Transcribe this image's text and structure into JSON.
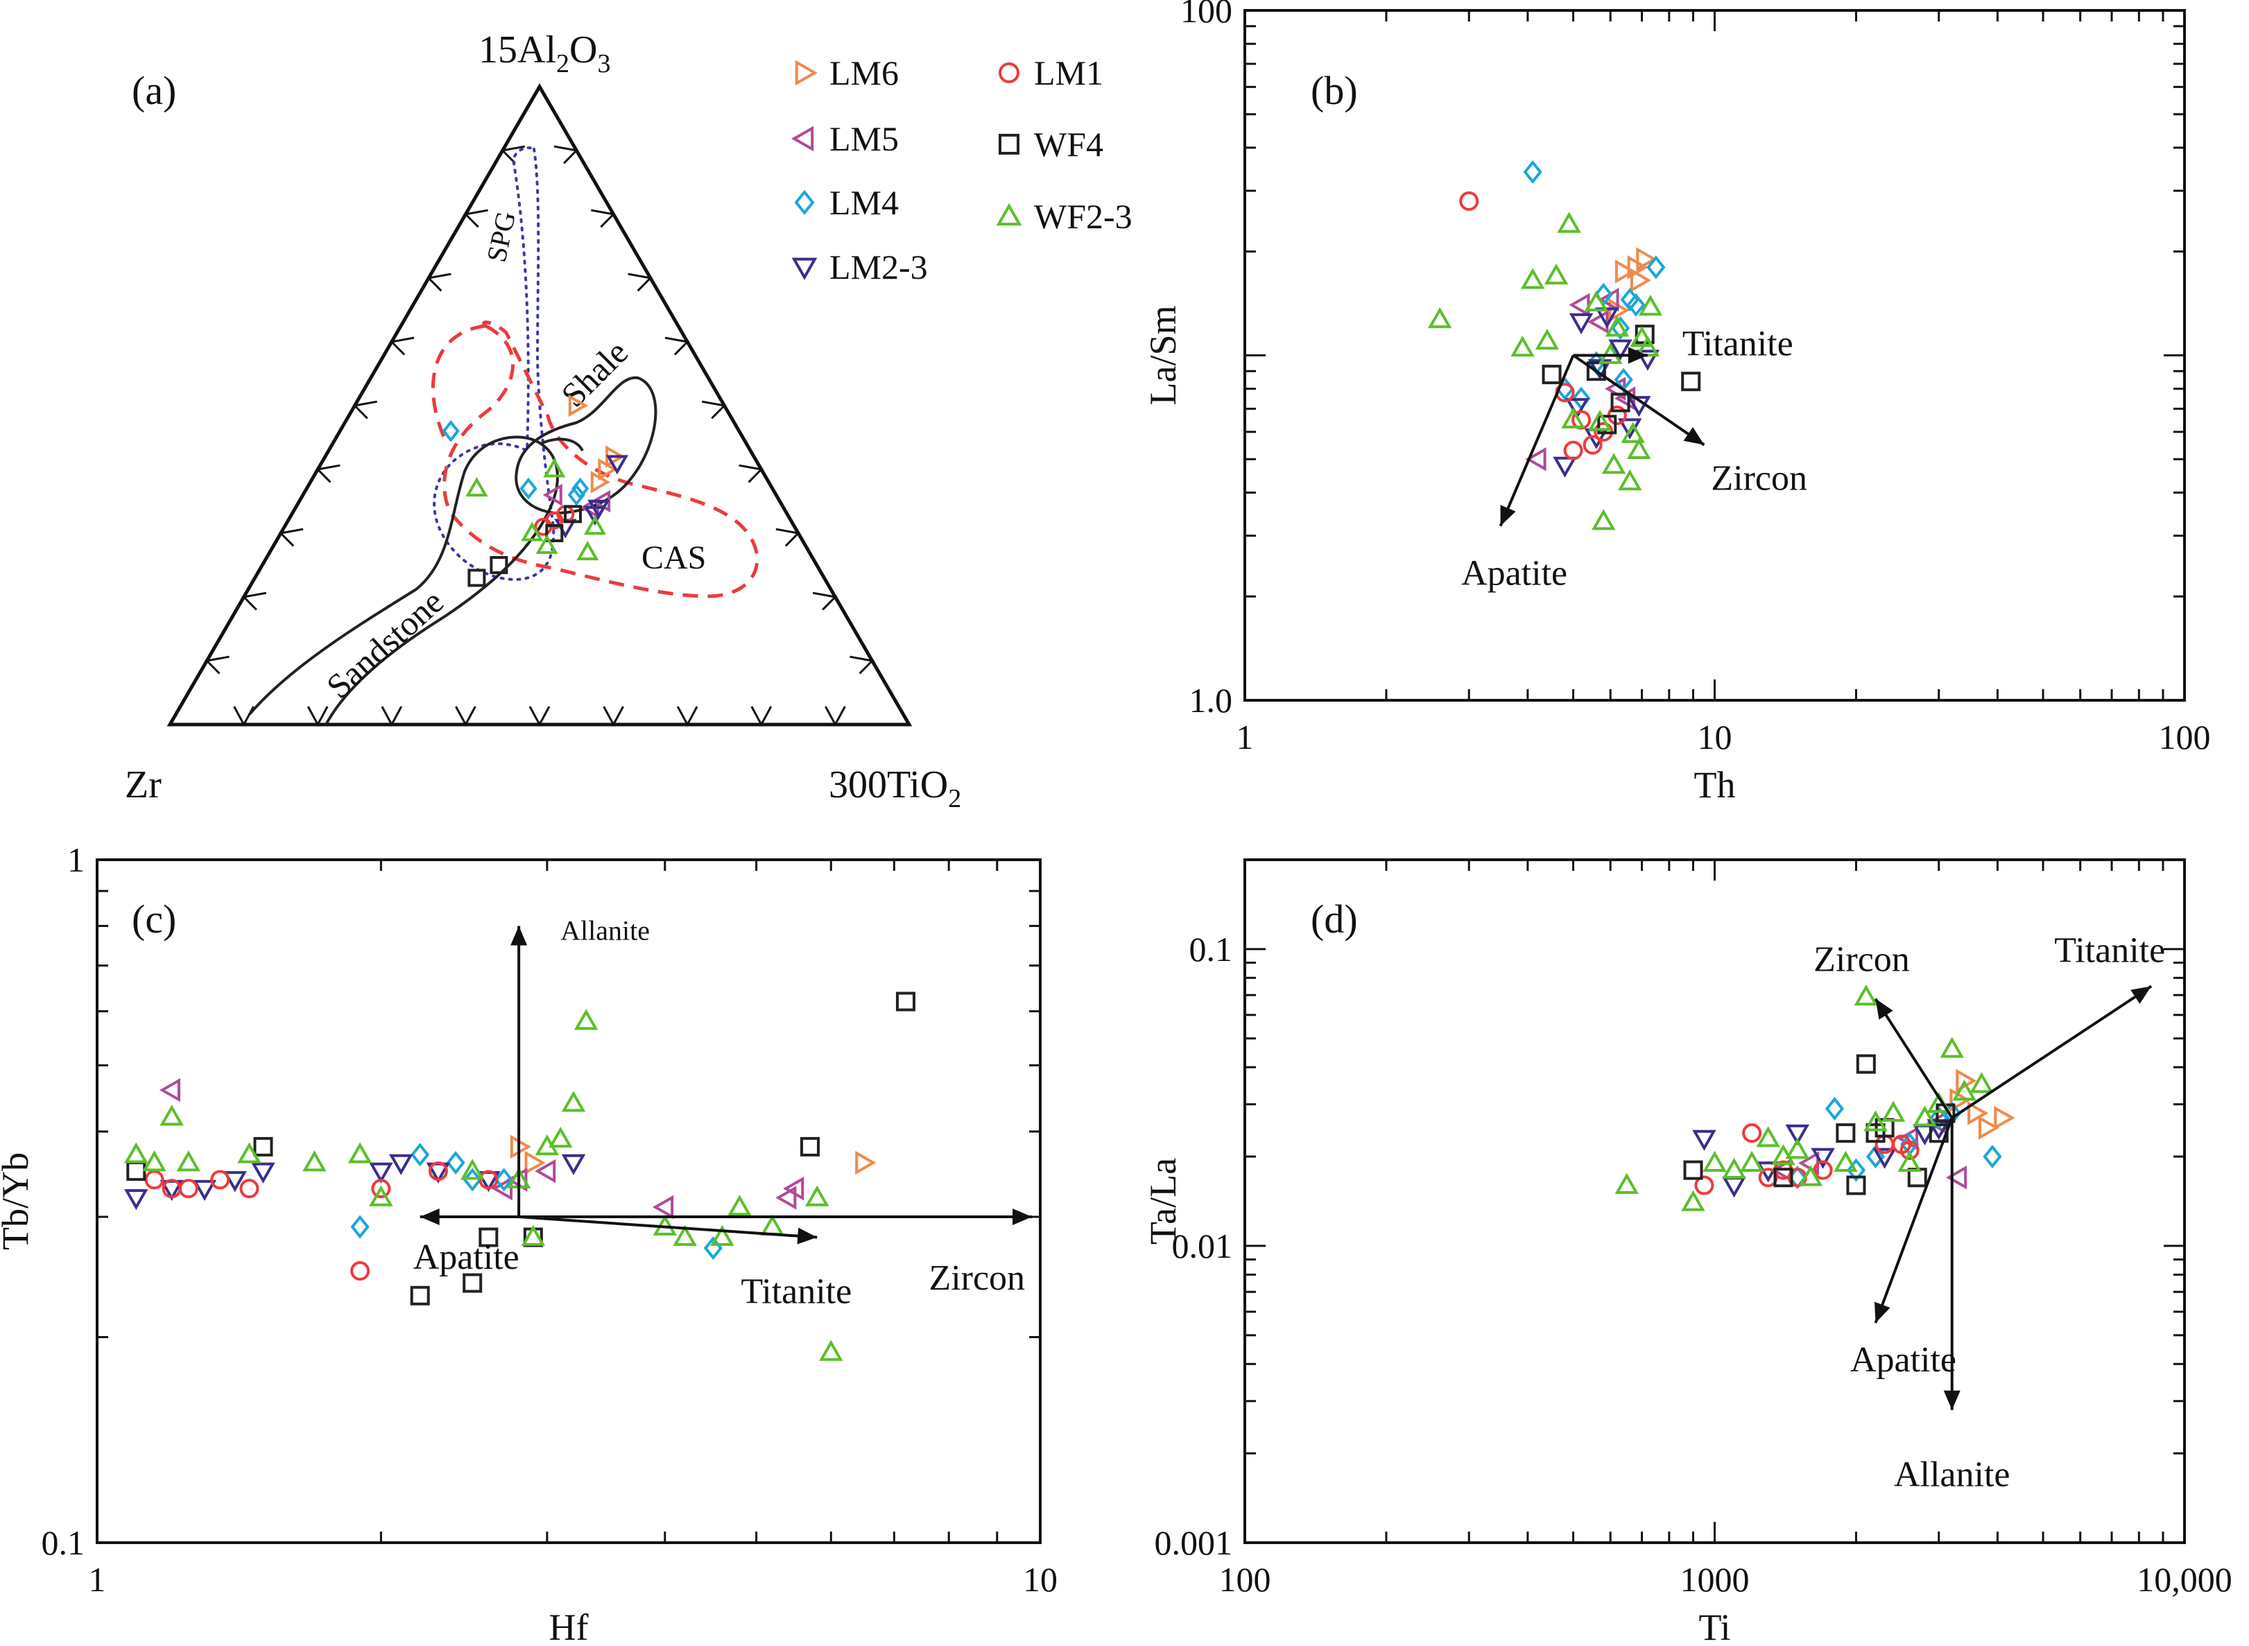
{
  "legend": [
    {
      "name": "LM6",
      "marker": "tri-right",
      "color": "#f08a4b"
    },
    {
      "name": "LM5",
      "marker": "tri-left",
      "color": "#b04a9a"
    },
    {
      "name": "LM4",
      "marker": "diamond",
      "color": "#1aa7d8"
    },
    {
      "name": "LM2-3",
      "marker": "tri-down",
      "color": "#3a2e8c"
    },
    {
      "name": "LM1",
      "marker": "circle",
      "color": "#ee3a3a"
    },
    {
      "name": "WF4",
      "marker": "square",
      "color": "#222222"
    },
    {
      "name": "WF2-3",
      "marker": "tri-up",
      "color": "#5bbf2a"
    }
  ],
  "chart_data": [
    {
      "panel": "(a)",
      "type": "ternary",
      "apex_labels": {
        "top": "15Al2O3",
        "left": "Zr",
        "right": "300TiO2"
      },
      "field_labels": [
        "SPG",
        "Shale",
        "CAS",
        "Sandstone"
      ],
      "note": "Composition points plotted as fractions (Al, Zr, Ti) summing to 1",
      "points": {
        "LM6": [
          [
            0.5,
            0.2,
            0.3
          ],
          [
            0.4,
            0.21,
            0.39
          ],
          [
            0.42,
            0.19,
            0.39
          ],
          [
            0.38,
            0.23,
            0.39
          ]
        ],
        "LM5": [
          [
            0.36,
            0.3,
            0.34
          ],
          [
            0.34,
            0.26,
            0.4
          ],
          [
            0.35,
            0.24,
            0.41
          ]
        ],
        "LM4": [
          [
            0.46,
            0.39,
            0.15
          ],
          [
            0.37,
            0.33,
            0.3
          ],
          [
            0.36,
            0.27,
            0.37
          ],
          [
            0.37,
            0.26,
            0.37
          ]
        ],
        "LM2-3": [
          [
            0.31,
            0.31,
            0.38
          ],
          [
            0.33,
            0.26,
            0.41
          ],
          [
            0.34,
            0.25,
            0.41
          ],
          [
            0.41,
            0.19,
            0.4
          ]
        ],
        "LM1": [
          [
            0.31,
            0.34,
            0.35
          ],
          [
            0.32,
            0.32,
            0.36
          ],
          [
            0.33,
            0.3,
            0.37
          ]
        ],
        "WF4": [
          [
            0.23,
            0.47,
            0.3
          ],
          [
            0.25,
            0.43,
            0.32
          ],
          [
            0.3,
            0.33,
            0.37
          ],
          [
            0.33,
            0.29,
            0.38
          ]
        ],
        "WF2-3": [
          [
            0.37,
            0.4,
            0.23
          ],
          [
            0.3,
            0.36,
            0.34
          ],
          [
            0.28,
            0.35,
            0.37
          ],
          [
            0.4,
            0.28,
            0.32
          ],
          [
            0.27,
            0.3,
            0.43
          ],
          [
            0.31,
            0.27,
            0.42
          ]
        ]
      }
    },
    {
      "panel": "(b)",
      "type": "scatter",
      "xscale": "log",
      "yscale": "log",
      "xlabel": "Th",
      "ylabel": "La/Sm",
      "xlim": [
        1,
        100
      ],
      "ylim": [
        1.0,
        100
      ],
      "xticks": [
        "1",
        "10",
        "100"
      ],
      "yticks": [
        "1.0",
        "100"
      ],
      "vectors": [
        {
          "label": "Titanite",
          "from": [
            5,
            10
          ],
          "to": [
            7.2,
            10
          ]
        },
        {
          "label": "Zircon",
          "from": [
            5,
            10
          ],
          "to": [
            9.5,
            5.5
          ]
        },
        {
          "label": "Apatite",
          "from": [
            5,
            10
          ],
          "to": [
            3.5,
            3.2
          ]
        }
      ],
      "series": {
        "LM6": [
          [
            6.8,
            18
          ],
          [
            7.1,
            19
          ],
          [
            6.4,
            17.5
          ],
          [
            6.9,
            16.5
          ],
          [
            6.2,
            13.5
          ]
        ],
        "LM5": [
          [
            6.0,
            14.5
          ],
          [
            5.7,
            12.5
          ],
          [
            6.2,
            8.0
          ],
          [
            4.2,
            5.0
          ],
          [
            5.2,
            14.0
          ],
          [
            6.5,
            7.5
          ]
        ],
        "LM4": [
          [
            4.1,
            34
          ],
          [
            7.5,
            18
          ],
          [
            5.8,
            15
          ],
          [
            6.6,
            14.5
          ],
          [
            5.6,
            9.5
          ],
          [
            6.4,
            8.5
          ],
          [
            4.8,
            8.0
          ],
          [
            5.2,
            7.5
          ],
          [
            6.8,
            14.0
          ],
          [
            6.3,
            12.0
          ]
        ],
        "LM2-3": [
          [
            5.2,
            12.5
          ],
          [
            5.9,
            13.0
          ],
          [
            6.3,
            10.5
          ],
          [
            5.7,
            9.2
          ],
          [
            6.9,
            7.2
          ],
          [
            5.1,
            7.1
          ],
          [
            6.6,
            6.2
          ],
          [
            5.6,
            5.8
          ],
          [
            4.8,
            4.8
          ],
          [
            7.2,
            9.8
          ]
        ],
        "LM1": [
          [
            3.0,
            28
          ],
          [
            5.2,
            6.5
          ],
          [
            5.8,
            6.0
          ],
          [
            5.0,
            5.3
          ],
          [
            4.8,
            7.8
          ],
          [
            6.2,
            6.7
          ],
          [
            5.5,
            5.5
          ]
        ],
        "WF4": [
          [
            4.5,
            8.8
          ],
          [
            5.9,
            6.3
          ],
          [
            6.3,
            7.3
          ],
          [
            5.6,
            9.0
          ],
          [
            7.1,
            11.5
          ],
          [
            8.9,
            8.4
          ]
        ],
        "WF2-3": [
          [
            2.6,
            12.7
          ],
          [
            3.9,
            10.5
          ],
          [
            4.4,
            11.0
          ],
          [
            4.1,
            16.5
          ],
          [
            4.6,
            17.0
          ],
          [
            4.9,
            24
          ],
          [
            5.6,
            14.2
          ],
          [
            6.0,
            10.0
          ],
          [
            5.7,
            6.4
          ],
          [
            6.7,
            5.9
          ],
          [
            7.3,
            13.8
          ],
          [
            7.0,
            11.2
          ],
          [
            6.1,
            4.8
          ],
          [
            6.6,
            4.3
          ],
          [
            5.8,
            3.3
          ],
          [
            5.0,
            6.5
          ],
          [
            6.9,
            5.3
          ],
          [
            6.2,
            12.0
          ],
          [
            7.2,
            10.5
          ]
        ]
      }
    },
    {
      "panel": "(c)",
      "type": "scatter",
      "xscale": "log",
      "yscale": "log",
      "xlabel": "Hf",
      "ylabel": "Tb/Yb",
      "xlim": [
        1,
        10
      ],
      "ylim": [
        0.1,
        1
      ],
      "xticks": [
        "1",
        "10"
      ],
      "yticks": [
        "0.1",
        "1"
      ],
      "vectors": [
        {
          "label": "Allanite",
          "from": [
            2.8,
            0.3
          ],
          "to": [
            2.8,
            0.8
          ]
        },
        {
          "label": "Apatite",
          "from": [
            2.8,
            0.3
          ],
          "to": [
            2.2,
            0.3
          ]
        },
        {
          "label": "Titanite",
          "from": [
            2.8,
            0.3
          ],
          "to": [
            5.8,
            0.28
          ]
        },
        {
          "label": "Zircon",
          "from": [
            2.8,
            0.3
          ],
          "to": [
            9.8,
            0.3
          ]
        }
      ],
      "series": {
        "LM6": [
          [
            2.9,
            0.36
          ],
          [
            6.5,
            0.36
          ],
          [
            2.8,
            0.38
          ]
        ],
        "LM5": [
          [
            1.2,
            0.46
          ],
          [
            2.8,
            0.34
          ],
          [
            3.0,
            0.35
          ],
          [
            4.0,
            0.31
          ],
          [
            5.4,
            0.32
          ],
          [
            5.5,
            0.33
          ],
          [
            2.7,
            0.33
          ]
        ],
        "LM4": [
          [
            1.9,
            0.29
          ],
          [
            2.2,
            0.37
          ],
          [
            2.4,
            0.36
          ],
          [
            2.5,
            0.34
          ],
          [
            4.5,
            0.27
          ],
          [
            2.7,
            0.34
          ]
        ],
        "LM2-3": [
          [
            1.1,
            0.32
          ],
          [
            1.2,
            0.33
          ],
          [
            1.3,
            0.33
          ],
          [
            1.4,
            0.34
          ],
          [
            1.5,
            0.35
          ],
          [
            2.0,
            0.35
          ],
          [
            2.1,
            0.36
          ],
          [
            2.3,
            0.35
          ],
          [
            2.6,
            0.34
          ],
          [
            3.2,
            0.36
          ]
        ],
        "LM1": [
          [
            1.15,
            0.34
          ],
          [
            1.2,
            0.33
          ],
          [
            1.25,
            0.33
          ],
          [
            1.35,
            0.34
          ],
          [
            1.45,
            0.33
          ],
          [
            2.0,
            0.33
          ],
          [
            2.3,
            0.35
          ],
          [
            2.6,
            0.34
          ],
          [
            1.9,
            0.25
          ]
        ],
        "WF4": [
          [
            1.1,
            0.35
          ],
          [
            1.5,
            0.38
          ],
          [
            2.6,
            0.28
          ],
          [
            2.9,
            0.28
          ],
          [
            2.5,
            0.24
          ],
          [
            2.2,
            0.23
          ],
          [
            5.7,
            0.38
          ],
          [
            7.2,
            0.62
          ]
        ],
        "WF2-3": [
          [
            1.1,
            0.37
          ],
          [
            1.15,
            0.36
          ],
          [
            1.25,
            0.36
          ],
          [
            1.45,
            0.37
          ],
          [
            1.7,
            0.36
          ],
          [
            1.9,
            0.37
          ],
          [
            2.0,
            0.32
          ],
          [
            2.5,
            0.35
          ],
          [
            2.8,
            0.34
          ],
          [
            3.0,
            0.38
          ],
          [
            3.1,
            0.39
          ],
          [
            3.2,
            0.44
          ],
          [
            3.3,
            0.58
          ],
          [
            4.0,
            0.29
          ],
          [
            4.2,
            0.28
          ],
          [
            4.6,
            0.28
          ],
          [
            4.8,
            0.31
          ],
          [
            5.2,
            0.29
          ],
          [
            5.8,
            0.32
          ],
          [
            6.0,
            0.19
          ],
          [
            2.9,
            0.28
          ],
          [
            1.2,
            0.42
          ]
        ]
      }
    },
    {
      "panel": "(d)",
      "type": "scatter",
      "xscale": "log",
      "yscale": "log",
      "xlabel": "Ti",
      "ylabel": "Ta/La",
      "xlim": [
        100,
        10000
      ],
      "ylim": [
        0.001,
        0.2
      ],
      "xticks": [
        "100",
        "1000",
        "10,000"
      ],
      "yticks": [
        "0.001",
        "0.01",
        "0.1"
      ],
      "vectors": [
        {
          "label": "Zircon",
          "from": [
            3200,
            0.027
          ],
          "to": [
            2200,
            0.068
          ]
        },
        {
          "label": "Titanite",
          "from": [
            3200,
            0.027
          ],
          "to": [
            8500,
            0.075
          ]
        },
        {
          "label": "Apatite",
          "from": [
            3200,
            0.027
          ],
          "to": [
            2200,
            0.0055
          ]
        },
        {
          "label": "Allanite",
          "from": [
            3200,
            0.027
          ],
          "to": [
            3200,
            0.0028
          ]
        }
      ],
      "series": {
        "LM6": [
          [
            3400,
            0.036
          ],
          [
            3600,
            0.028
          ],
          [
            4100,
            0.027
          ],
          [
            3800,
            0.025
          ],
          [
            3300,
            0.031
          ]
        ],
        "LM5": [
          [
            1400,
            0.018
          ],
          [
            1600,
            0.019
          ],
          [
            2600,
            0.023
          ],
          [
            3300,
            0.017
          ],
          [
            3000,
            0.026
          ]
        ],
        "LM4": [
          [
            1500,
            0.017
          ],
          [
            1800,
            0.029
          ],
          [
            2000,
            0.018
          ],
          [
            2200,
            0.02
          ],
          [
            3000,
            0.027
          ],
          [
            3200,
            0.028
          ],
          [
            3900,
            0.02
          ],
          [
            2600,
            0.022
          ]
        ],
        "LM2-3": [
          [
            950,
            0.023
          ],
          [
            1100,
            0.016
          ],
          [
            1300,
            0.018
          ],
          [
            1500,
            0.024
          ],
          [
            1700,
            0.02
          ],
          [
            2300,
            0.02
          ],
          [
            2800,
            0.024
          ],
          [
            3000,
            0.025
          ]
        ],
        "LM1": [
          [
            950,
            0.016
          ],
          [
            1200,
            0.024
          ],
          [
            1300,
            0.017
          ],
          [
            1400,
            0.018
          ],
          [
            1500,
            0.017
          ],
          [
            1700,
            0.018
          ],
          [
            2300,
            0.022
          ],
          [
            2500,
            0.022
          ],
          [
            2600,
            0.021
          ]
        ],
        "WF4": [
          [
            900,
            0.018
          ],
          [
            1400,
            0.017
          ],
          [
            1900,
            0.024
          ],
          [
            2000,
            0.016
          ],
          [
            2100,
            0.041
          ],
          [
            2200,
            0.024
          ],
          [
            2300,
            0.025
          ],
          [
            2700,
            0.017
          ],
          [
            3000,
            0.024
          ],
          [
            3100,
            0.028
          ]
        ],
        "WF2-3": [
          [
            650,
            0.016
          ],
          [
            900,
            0.014
          ],
          [
            1000,
            0.019
          ],
          [
            1100,
            0.018
          ],
          [
            1200,
            0.019
          ],
          [
            1300,
            0.023
          ],
          [
            1400,
            0.02
          ],
          [
            1500,
            0.021
          ],
          [
            1600,
            0.017
          ],
          [
            1900,
            0.019
          ],
          [
            2100,
            0.069
          ],
          [
            2200,
            0.026
          ],
          [
            2400,
            0.028
          ],
          [
            2600,
            0.019
          ],
          [
            2800,
            0.027
          ],
          [
            3200,
            0.046
          ],
          [
            3400,
            0.033
          ],
          [
            3700,
            0.035
          ],
          [
            3000,
            0.03
          ]
        ]
      }
    }
  ]
}
